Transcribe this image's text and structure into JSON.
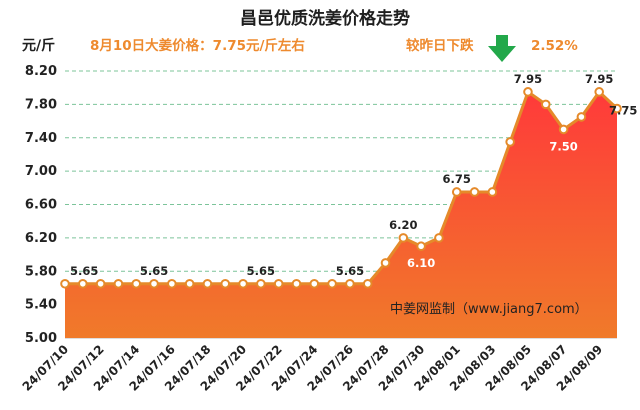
{
  "chart_data": {
    "type": "area",
    "title": "昌邑优质洗姜价格走势",
    "ylabel": "元/斤",
    "annotation_price": "8月10日大姜价格：7.75元/斤左右",
    "annotation_change": "较昨日下跌",
    "annotation_percent": "2.52%",
    "watermark": "中姜网监制（www.jiang7.com）",
    "ylim": [
      5.0,
      8.2
    ],
    "yticks": [
      "5.00",
      "5.40",
      "5.80",
      "6.20",
      "6.60",
      "7.00",
      "7.40",
      "7.80",
      "8.20"
    ],
    "x": [
      "24/07/10",
      "24/07/11",
      "24/07/12",
      "24/07/13",
      "24/07/14",
      "24/07/15",
      "24/07/16",
      "24/07/17",
      "24/07/18",
      "24/07/19",
      "24/07/20",
      "24/07/21",
      "24/07/22",
      "24/07/23",
      "24/07/24",
      "24/07/25",
      "24/07/26",
      "24/07/27",
      "24/07/28",
      "24/07/29",
      "24/07/30",
      "24/07/31",
      "24/08/01",
      "24/08/02",
      "24/08/03",
      "24/08/04",
      "24/08/05",
      "24/08/06",
      "24/08/07",
      "24/08/08",
      "24/08/09",
      "24/08/10"
    ],
    "xtick_labels": [
      "24/07/10",
      "24/07/12",
      "24/07/14",
      "24/07/16",
      "24/07/18",
      "24/07/20",
      "24/07/22",
      "24/07/24",
      "24/07/26",
      "24/07/28",
      "24/07/30",
      "24/08/01",
      "24/08/03",
      "24/08/05",
      "24/08/07",
      "24/08/09"
    ],
    "values": [
      5.65,
      5.65,
      5.65,
      5.65,
      5.65,
      5.65,
      5.65,
      5.65,
      5.65,
      5.65,
      5.65,
      5.65,
      5.65,
      5.65,
      5.65,
      5.65,
      5.65,
      5.65,
      5.9,
      6.2,
      6.1,
      6.2,
      6.75,
      6.75,
      6.75,
      7.35,
      7.95,
      7.8,
      7.5,
      7.65,
      7.95,
      7.75
    ],
    "data_labels": [
      {
        "i": 0,
        "text": "5.65"
      },
      {
        "i": 5,
        "text": "5.65"
      },
      {
        "i": 11,
        "text": "5.65"
      },
      {
        "i": 16,
        "text": "5.65"
      },
      {
        "i": 19,
        "text": "6.20"
      },
      {
        "i": 20,
        "text": "6.10"
      },
      {
        "i": 22,
        "text": "6.75"
      },
      {
        "i": 26,
        "text": "7.95"
      },
      {
        "i": 28,
        "text": "7.50"
      },
      {
        "i": 30,
        "text": "7.95"
      },
      {
        "i": 31,
        "text": "7.75"
      }
    ],
    "colors": {
      "line": "#e58a2a",
      "area_top": "#ff3a3a",
      "area_bottom": "#f07a2a",
      "grid": "#7cc49a",
      "arrow": "#22a84a"
    }
  }
}
